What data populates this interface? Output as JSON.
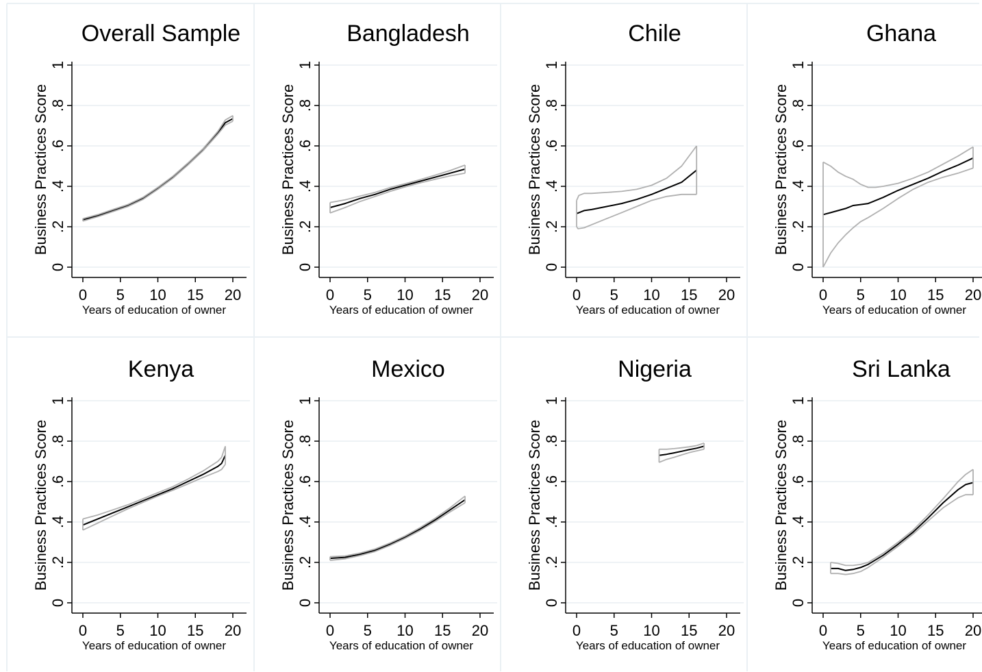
{
  "figure": {
    "x_label": "Years of education of owner",
    "y_label": "Business Practices Score",
    "x_ticks": [
      0,
      5,
      10,
      15,
      20
    ],
    "x_tick_labels": [
      "0",
      "5",
      "10",
      "15",
      "20"
    ],
    "y_ticks": [
      0,
      0.2,
      0.4,
      0.6,
      0.8,
      1
    ],
    "y_tick_labels": [
      "0",
      ".2",
      ".4",
      ".6",
      ".8",
      "1"
    ],
    "colors": {
      "fit": "#000000",
      "ci": "#b0b0b0",
      "grid": "#e8eef2",
      "frame": "#eaf0f4"
    }
  },
  "chart_data": [
    {
      "type": "line",
      "title": "Overall Sample",
      "xlim": [
        0,
        20
      ],
      "ylim": [
        0,
        1
      ],
      "series": [
        {
          "role": "fit",
          "x": [
            0,
            2,
            4,
            6,
            8,
            10,
            12,
            14,
            16,
            18,
            19,
            20
          ],
          "y": [
            0.235,
            0.255,
            0.28,
            0.305,
            0.34,
            0.39,
            0.445,
            0.51,
            0.58,
            0.665,
            0.715,
            0.735
          ]
        },
        {
          "role": "ci_upper",
          "x": [
            0,
            2,
            4,
            6,
            8,
            10,
            12,
            14,
            16,
            18,
            19,
            20
          ],
          "y": [
            0.24,
            0.26,
            0.285,
            0.31,
            0.345,
            0.395,
            0.45,
            0.515,
            0.585,
            0.672,
            0.728,
            0.75
          ]
        },
        {
          "role": "ci_lower",
          "x": [
            0,
            2,
            4,
            6,
            8,
            10,
            12,
            14,
            16,
            18,
            19,
            20
          ],
          "y": [
            0.228,
            0.25,
            0.275,
            0.3,
            0.335,
            0.385,
            0.44,
            0.505,
            0.575,
            0.658,
            0.703,
            0.722
          ]
        }
      ]
    },
    {
      "type": "line",
      "title": "Bangladesh",
      "xlim": [
        0,
        20
      ],
      "ylim": [
        0,
        1
      ],
      "series": [
        {
          "role": "fit",
          "x": [
            0,
            2,
            4,
            6,
            8,
            10,
            12,
            14,
            16,
            18
          ],
          "y": [
            0.295,
            0.315,
            0.34,
            0.36,
            0.385,
            0.405,
            0.425,
            0.445,
            0.465,
            0.485
          ]
        },
        {
          "role": "ci_upper",
          "x": [
            0,
            2,
            4,
            6,
            8,
            10,
            12,
            14,
            16,
            18
          ],
          "y": [
            0.32,
            0.333,
            0.352,
            0.37,
            0.394,
            0.413,
            0.433,
            0.455,
            0.478,
            0.505
          ]
        },
        {
          "role": "ci_lower",
          "x": [
            0,
            2,
            4,
            6,
            8,
            10,
            12,
            14,
            16,
            18
          ],
          "y": [
            0.268,
            0.295,
            0.325,
            0.35,
            0.375,
            0.397,
            0.417,
            0.435,
            0.452,
            0.465
          ]
        }
      ]
    },
    {
      "type": "line",
      "title": "Chile",
      "xlim": [
        0,
        20
      ],
      "ylim": [
        0,
        1
      ],
      "series": [
        {
          "role": "fit",
          "x": [
            0,
            1,
            2,
            4,
            6,
            8,
            10,
            12,
            14,
            16
          ],
          "y": [
            0.265,
            0.28,
            0.285,
            0.3,
            0.315,
            0.335,
            0.36,
            0.39,
            0.42,
            0.48
          ]
        },
        {
          "role": "ci_upper",
          "x": [
            0,
            0.3,
            1,
            2,
            4,
            6,
            8,
            10,
            12,
            14,
            16
          ],
          "y": [
            0.33,
            0.355,
            0.365,
            0.365,
            0.37,
            0.375,
            0.385,
            0.405,
            0.44,
            0.5,
            0.6
          ]
        },
        {
          "role": "ci_lower",
          "x": [
            0,
            0.2,
            1,
            2,
            4,
            6,
            8,
            10,
            12,
            14,
            16
          ],
          "y": [
            0.2,
            0.19,
            0.195,
            0.21,
            0.24,
            0.27,
            0.3,
            0.33,
            0.35,
            0.36,
            0.36
          ]
        }
      ]
    },
    {
      "type": "line",
      "title": "Ghana",
      "xlim": [
        0,
        20
      ],
      "ylim": [
        0,
        1
      ],
      "series": [
        {
          "role": "fit",
          "x": [
            0,
            1,
            2,
            3,
            4,
            5,
            6,
            8,
            10,
            12,
            14,
            16,
            18,
            20
          ],
          "y": [
            0.26,
            0.27,
            0.28,
            0.29,
            0.305,
            0.31,
            0.315,
            0.345,
            0.38,
            0.41,
            0.44,
            0.475,
            0.505,
            0.54
          ]
        },
        {
          "role": "ci_upper",
          "x": [
            0,
            1,
            2,
            3,
            4,
            5,
            6,
            7,
            8,
            10,
            12,
            14,
            16,
            18,
            20
          ],
          "y": [
            0.52,
            0.5,
            0.47,
            0.45,
            0.435,
            0.41,
            0.395,
            0.395,
            0.4,
            0.415,
            0.44,
            0.47,
            0.51,
            0.55,
            0.595
          ]
        },
        {
          "role": "ci_lower",
          "x": [
            0,
            1,
            2,
            3,
            4,
            5,
            6,
            8,
            10,
            12,
            14,
            16,
            18,
            20
          ],
          "y": [
            0.0,
            0.07,
            0.12,
            0.16,
            0.195,
            0.225,
            0.245,
            0.29,
            0.34,
            0.385,
            0.42,
            0.445,
            0.465,
            0.49
          ]
        }
      ]
    },
    {
      "type": "line",
      "title": "Kenya",
      "xlim": [
        0,
        20
      ],
      "ylim": [
        0,
        1
      ],
      "series": [
        {
          "role": "fit",
          "x": [
            0,
            2,
            4,
            6,
            8,
            10,
            12,
            14,
            16,
            18,
            18.5,
            19
          ],
          "y": [
            0.385,
            0.415,
            0.445,
            0.475,
            0.505,
            0.535,
            0.565,
            0.6,
            0.635,
            0.675,
            0.69,
            0.73
          ]
        },
        {
          "role": "ci_upper",
          "x": [
            0,
            2,
            4,
            6,
            8,
            10,
            12,
            14,
            16,
            18,
            18.5,
            19
          ],
          "y": [
            0.415,
            0.435,
            0.46,
            0.485,
            0.515,
            0.545,
            0.575,
            0.612,
            0.652,
            0.7,
            0.72,
            0.775
          ]
        },
        {
          "role": "ci_lower",
          "x": [
            0,
            2,
            4,
            6,
            8,
            10,
            12,
            14,
            16,
            18,
            18.5,
            19
          ],
          "y": [
            0.36,
            0.395,
            0.43,
            0.465,
            0.497,
            0.528,
            0.557,
            0.588,
            0.62,
            0.65,
            0.66,
            0.685
          ]
        }
      ]
    },
    {
      "type": "line",
      "title": "Mexico",
      "xlim": [
        0,
        20
      ],
      "ylim": [
        0,
        1
      ],
      "series": [
        {
          "role": "fit",
          "x": [
            0,
            2,
            4,
            6,
            8,
            10,
            12,
            14,
            16,
            18
          ],
          "y": [
            0.22,
            0.225,
            0.24,
            0.26,
            0.29,
            0.325,
            0.365,
            0.41,
            0.46,
            0.51
          ]
        },
        {
          "role": "ci_upper",
          "x": [
            0,
            2,
            4,
            6,
            8,
            10,
            12,
            14,
            16,
            18
          ],
          "y": [
            0.228,
            0.232,
            0.246,
            0.266,
            0.296,
            0.331,
            0.372,
            0.418,
            0.47,
            0.528
          ]
        },
        {
          "role": "ci_lower",
          "x": [
            0,
            2,
            4,
            6,
            8,
            10,
            12,
            14,
            16,
            18
          ],
          "y": [
            0.21,
            0.218,
            0.234,
            0.254,
            0.284,
            0.319,
            0.358,
            0.402,
            0.45,
            0.495
          ]
        }
      ]
    },
    {
      "type": "line",
      "title": "Nigeria",
      "xlim": [
        0,
        20
      ],
      "ylim": [
        0,
        1
      ],
      "series": [
        {
          "role": "fit",
          "x": [
            11,
            12,
            13,
            14,
            15,
            16,
            17
          ],
          "y": [
            0.73,
            0.735,
            0.742,
            0.75,
            0.758,
            0.765,
            0.775
          ]
        },
        {
          "role": "ci_upper",
          "x": [
            11,
            12,
            13,
            14,
            15,
            16,
            17
          ],
          "y": [
            0.76,
            0.76,
            0.763,
            0.767,
            0.772,
            0.778,
            0.79
          ]
        },
        {
          "role": "ci_lower",
          "x": [
            11,
            12,
            13,
            14,
            15,
            16,
            17
          ],
          "y": [
            0.695,
            0.71,
            0.72,
            0.732,
            0.743,
            0.752,
            0.76
          ]
        }
      ]
    },
    {
      "type": "line",
      "title": "Sri Lanka",
      "xlim": [
        0,
        20
      ],
      "ylim": [
        0,
        1
      ],
      "series": [
        {
          "role": "fit",
          "x": [
            1,
            2,
            3,
            4,
            5,
            6,
            8,
            10,
            12,
            14,
            16,
            18,
            19,
            20
          ],
          "y": [
            0.17,
            0.17,
            0.16,
            0.165,
            0.175,
            0.19,
            0.235,
            0.29,
            0.35,
            0.42,
            0.495,
            0.56,
            0.585,
            0.595
          ]
        },
        {
          "role": "ci_upper",
          "x": [
            1,
            2,
            3,
            4,
            5,
            6,
            8,
            10,
            12,
            14,
            16,
            18,
            19,
            20
          ],
          "y": [
            0.2,
            0.195,
            0.185,
            0.185,
            0.19,
            0.2,
            0.245,
            0.3,
            0.36,
            0.435,
            0.515,
            0.6,
            0.635,
            0.66
          ]
        },
        {
          "role": "ci_lower",
          "x": [
            1,
            2,
            3,
            4,
            5,
            6,
            8,
            10,
            12,
            14,
            16,
            18,
            19,
            20
          ],
          "y": [
            0.145,
            0.145,
            0.14,
            0.145,
            0.155,
            0.175,
            0.225,
            0.28,
            0.34,
            0.405,
            0.47,
            0.52,
            0.535,
            0.535
          ]
        }
      ]
    }
  ]
}
